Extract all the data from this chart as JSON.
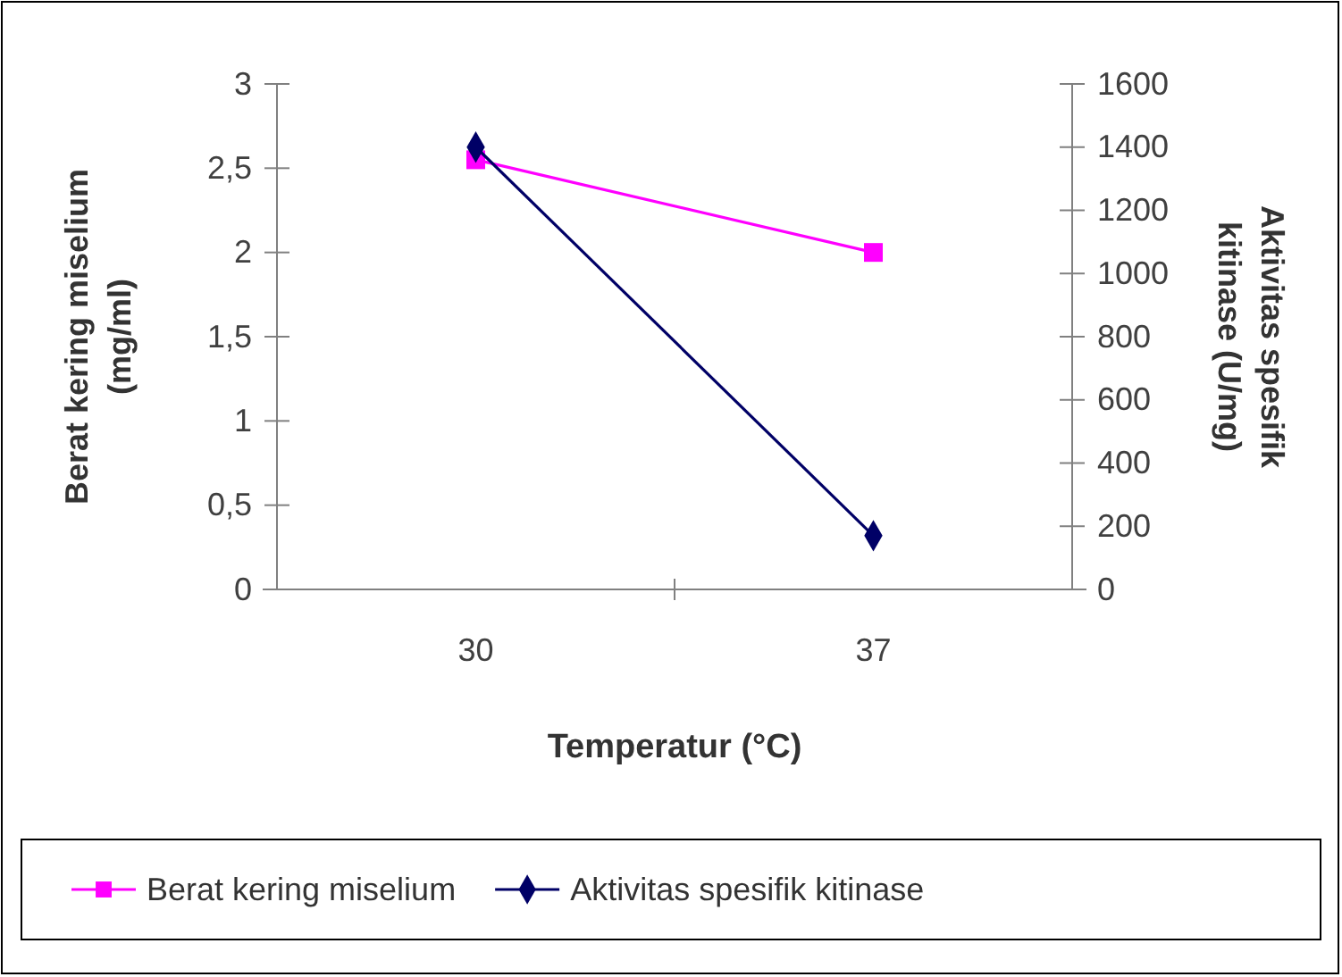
{
  "chart_data": {
    "type": "line",
    "xlabel": "Temperatur (°C)",
    "ylabel": "Berat kering miselium (mg/ml)",
    "y2label": "Aktivitas spesifik kitinase (U/mg)",
    "categories": [
      "30",
      "37"
    ],
    "ylim": [
      0,
      3
    ],
    "yticks": [
      0,
      {
        "value": 0.5,
        "label": "0,5"
      },
      1,
      {
        "value": 1.5,
        "label": "1,5"
      },
      2,
      {
        "value": 2.5,
        "label": "2,5"
      },
      3
    ],
    "y2lim": [
      0,
      1600
    ],
    "y2ticks": [
      0,
      200,
      400,
      600,
      800,
      1000,
      1200,
      1400,
      1600
    ],
    "series": [
      {
        "name": "Berat kering miselium",
        "color": "#ff00ff",
        "marker": "square",
        "values": [
          2.55,
          2.0
        ]
      },
      {
        "name": "Aktivitas spesifik kitinase",
        "color": "#000066",
        "marker": "diamond",
        "axis": "y2",
        "values": [
          1400,
          170
        ]
      }
    ],
    "legend": "bottom",
    "grid": false
  }
}
